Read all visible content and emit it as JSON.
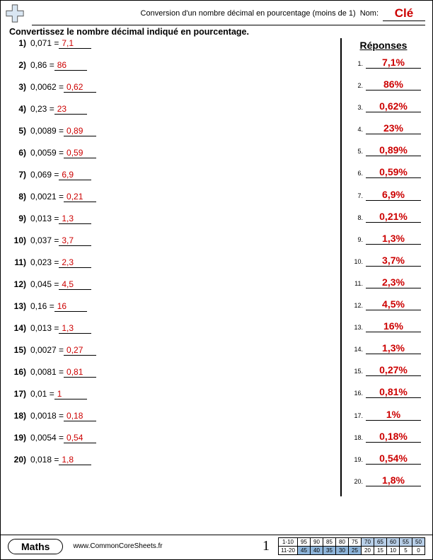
{
  "header": {
    "title": "Conversion d'un nombre décimal en pourcentage (moins de 1)",
    "nom_label": "Nom:",
    "nom_value": "Clé"
  },
  "instruction": "Convertissez le nombre décimal indiqué en pourcentage.",
  "questions": [
    {
      "n": "1)",
      "q": "0,071 =",
      "a": "7,1"
    },
    {
      "n": "2)",
      "q": "0,86 =",
      "a": "86"
    },
    {
      "n": "3)",
      "q": "0,0062 =",
      "a": "0,62"
    },
    {
      "n": "4)",
      "q": "0,23 =",
      "a": "23"
    },
    {
      "n": "5)",
      "q": "0,0089 =",
      "a": "0,89"
    },
    {
      "n": "6)",
      "q": "0,0059 =",
      "a": "0,59"
    },
    {
      "n": "7)",
      "q": "0,069 =",
      "a": "6,9"
    },
    {
      "n": "8)",
      "q": "0,0021 =",
      "a": "0,21"
    },
    {
      "n": "9)",
      "q": "0,013 =",
      "a": "1,3"
    },
    {
      "n": "10)",
      "q": "0,037 =",
      "a": "3,7"
    },
    {
      "n": "11)",
      "q": "0,023 =",
      "a": "2,3"
    },
    {
      "n": "12)",
      "q": "0,045 =",
      "a": "4,5"
    },
    {
      "n": "13)",
      "q": "0,16 =",
      "a": "16"
    },
    {
      "n": "14)",
      "q": "0,013 =",
      "a": "1,3"
    },
    {
      "n": "15)",
      "q": "0,0027 =",
      "a": "0,27"
    },
    {
      "n": "16)",
      "q": "0,0081 =",
      "a": "0,81"
    },
    {
      "n": "17)",
      "q": "0,01 =",
      "a": "1"
    },
    {
      "n": "18)",
      "q": "0,0018 =",
      "a": "0,18"
    },
    {
      "n": "19)",
      "q": "0,0054 =",
      "a": "0,54"
    },
    {
      "n": "20)",
      "q": "0,018 =",
      "a": "1,8"
    }
  ],
  "answers": {
    "header": "Réponses",
    "items": [
      {
        "n": "1.",
        "v": "7,1%"
      },
      {
        "n": "2.",
        "v": "86%"
      },
      {
        "n": "3.",
        "v": "0,62%"
      },
      {
        "n": "4.",
        "v": "23%"
      },
      {
        "n": "5.",
        "v": "0,89%"
      },
      {
        "n": "6.",
        "v": "0,59%"
      },
      {
        "n": "7.",
        "v": "6,9%"
      },
      {
        "n": "8.",
        "v": "0,21%"
      },
      {
        "n": "9.",
        "v": "1,3%"
      },
      {
        "n": "10.",
        "v": "3,7%"
      },
      {
        "n": "11.",
        "v": "2,3%"
      },
      {
        "n": "12.",
        "v": "4,5%"
      },
      {
        "n": "13.",
        "v": "16%"
      },
      {
        "n": "14.",
        "v": "1,3%"
      },
      {
        "n": "15.",
        "v": "0,27%"
      },
      {
        "n": "16.",
        "v": "0,81%"
      },
      {
        "n": "17.",
        "v": "1%"
      },
      {
        "n": "18.",
        "v": "0,18%"
      },
      {
        "n": "19.",
        "v": "0,54%"
      },
      {
        "n": "20.",
        "v": "1,8%"
      }
    ]
  },
  "footer": {
    "subject": "Maths",
    "site": "www.CommonCoreSheets.fr",
    "page_number": "1",
    "score_rows": [
      {
        "label": "1-10",
        "cells": [
          "95",
          "90",
          "85",
          "80",
          "75",
          "70",
          "65",
          "60",
          "55",
          "50"
        ],
        "shade_from": 5
      },
      {
        "label": "11-20",
        "cells": [
          "45",
          "40",
          "35",
          "30",
          "25",
          "20",
          "15",
          "10",
          "5",
          "0"
        ],
        "shade_to": 5
      }
    ]
  },
  "colors": {
    "answer_red": "#cc0000",
    "shade_light": "#b8cfe8",
    "shade_dark": "#8db4d9"
  }
}
